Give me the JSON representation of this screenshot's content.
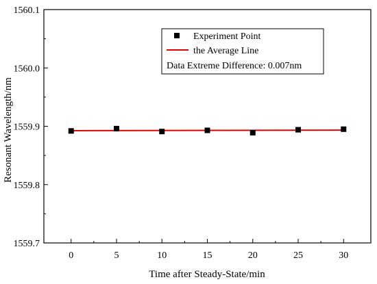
{
  "chart_data": {
    "type": "scatter",
    "xlabel": "Time after Steady-State/min",
    "ylabel": "Resonant Wavelength/nm",
    "xlim": [
      -3,
      33
    ],
    "ylim": [
      1559.7,
      1560.1
    ],
    "x_ticks": [
      0,
      5,
      10,
      15,
      20,
      25,
      30
    ],
    "y_ticks": [
      1559.7,
      1559.8,
      1559.9,
      1560.0,
      1560.1
    ],
    "x_tick_labels": [
      "0",
      "5",
      "10",
      "15",
      "20",
      "25",
      "30"
    ],
    "y_tick_labels": [
      "1559.7",
      "1559.8",
      "1559.9",
      "1560.0",
      "1560.1"
    ],
    "series": [
      {
        "name": "Experiment Point",
        "kind": "scatter",
        "marker": "square",
        "color": "#000000",
        "x": [
          0,
          5,
          10,
          15,
          20,
          25,
          30
        ],
        "y": [
          1559.892,
          1559.896,
          1559.891,
          1559.893,
          1559.889,
          1559.894,
          1559.895
        ]
      },
      {
        "name": "the Average Line",
        "kind": "line",
        "color": "#e00000",
        "x": [
          0,
          30
        ],
        "y": [
          1559.8924,
          1559.8934
        ]
      }
    ],
    "annotation": "Data Extreme Difference: 0.007nm",
    "legend_position": "top-right",
    "grid": false
  }
}
